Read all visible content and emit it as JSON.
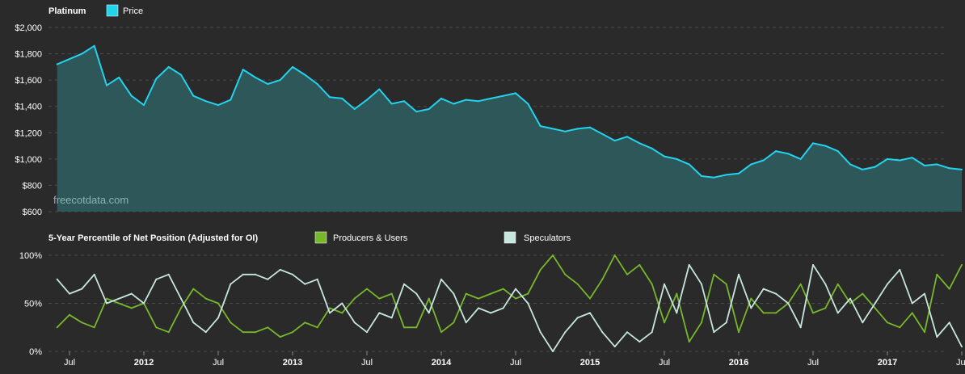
{
  "colors": {
    "background": "#2a2a2a",
    "grid": "#4a4a4a",
    "price_line": "#22d3ee",
    "price_fill": "#2e5a5c",
    "producers": "#77b82a",
    "speculators": "#c7e6de"
  },
  "watermark": "freecotdata.com",
  "chart_data": [
    {
      "type": "area",
      "title": "Platinum",
      "legend": [
        {
          "name": "Price",
          "color": "#22d3ee"
        }
      ],
      "ylim": [
        600,
        2000
      ],
      "y_ticks": [
        {
          "value": 2000,
          "label": "$2,000"
        },
        {
          "value": 1800,
          "label": "$1,800"
        },
        {
          "value": 1600,
          "label": "$1,600"
        },
        {
          "value": 1400,
          "label": "$1,400"
        },
        {
          "value": 1200,
          "label": "$1,200"
        },
        {
          "value": 1000,
          "label": "$1,000"
        },
        {
          "value": 800,
          "label": "$800"
        },
        {
          "value": 600,
          "label": "$600"
        }
      ],
      "grid": true,
      "series": [
        {
          "name": "Price",
          "x": [
            "2011-06",
            "2011-07",
            "2011-08",
            "2011-09",
            "2011-10",
            "2011-11",
            "2011-12",
            "2012-01",
            "2012-02",
            "2012-03",
            "2012-04",
            "2012-05",
            "2012-06",
            "2012-07",
            "2012-08",
            "2012-09",
            "2012-10",
            "2012-11",
            "2012-12",
            "2013-01",
            "2013-02",
            "2013-03",
            "2013-04",
            "2013-05",
            "2013-06",
            "2013-07",
            "2013-08",
            "2013-09",
            "2013-10",
            "2013-11",
            "2013-12",
            "2014-01",
            "2014-02",
            "2014-03",
            "2014-04",
            "2014-05",
            "2014-06",
            "2014-07",
            "2014-08",
            "2014-09",
            "2014-10",
            "2014-11",
            "2014-12",
            "2015-01",
            "2015-02",
            "2015-03",
            "2015-04",
            "2015-05",
            "2015-06",
            "2015-07",
            "2015-08",
            "2015-09",
            "2015-10",
            "2015-11",
            "2015-12",
            "2016-01",
            "2016-02",
            "2016-03",
            "2016-04",
            "2016-05",
            "2016-06",
            "2016-07",
            "2016-08",
            "2016-09",
            "2016-10",
            "2016-11",
            "2016-12",
            "2017-01",
            "2017-02",
            "2017-03",
            "2017-04",
            "2017-05",
            "2017-06",
            "2017-07"
          ],
          "values": [
            1720,
            1760,
            1800,
            1860,
            1560,
            1620,
            1480,
            1410,
            1610,
            1700,
            1640,
            1480,
            1440,
            1410,
            1450,
            1680,
            1620,
            1570,
            1600,
            1700,
            1640,
            1570,
            1470,
            1460,
            1380,
            1450,
            1530,
            1420,
            1440,
            1360,
            1380,
            1460,
            1420,
            1450,
            1440,
            1460,
            1480,
            1500,
            1420,
            1250,
            1230,
            1210,
            1230,
            1240,
            1190,
            1140,
            1170,
            1120,
            1080,
            1020,
            1000,
            960,
            870,
            860,
            880,
            890,
            960,
            990,
            1060,
            1040,
            1000,
            1120,
            1100,
            1060,
            960,
            920,
            940,
            1000,
            990,
            1010,
            950,
            960,
            930,
            920
          ]
        }
      ]
    },
    {
      "type": "line",
      "title": "5-Year Percentile of Net Position (Adjusted for OI)",
      "ylim": [
        0,
        100
      ],
      "y_ticks": [
        {
          "value": 100,
          "label": "100%"
        },
        {
          "value": 50,
          "label": "50%"
        },
        {
          "value": 0,
          "label": "0%"
        }
      ],
      "x_ticks": [
        {
          "label": "Jul",
          "x": "2011-07",
          "bold": false
        },
        {
          "label": "2012",
          "x": "2012-01",
          "bold": true
        },
        {
          "label": "Jul",
          "x": "2012-07",
          "bold": false
        },
        {
          "label": "2013",
          "x": "2013-01",
          "bold": true
        },
        {
          "label": "Jul",
          "x": "2013-07",
          "bold": false
        },
        {
          "label": "2014",
          "x": "2014-01",
          "bold": true
        },
        {
          "label": "Jul",
          "x": "2014-07",
          "bold": false
        },
        {
          "label": "2015",
          "x": "2015-01",
          "bold": true
        },
        {
          "label": "Jul",
          "x": "2015-07",
          "bold": false
        },
        {
          "label": "2016",
          "x": "2016-01",
          "bold": true
        },
        {
          "label": "Jul",
          "x": "2016-07",
          "bold": false
        },
        {
          "label": "2017",
          "x": "2017-01",
          "bold": true
        },
        {
          "label": "Jul",
          "x": "2017-07",
          "bold": false
        }
      ],
      "grid": true,
      "series": [
        {
          "name": "Producers & Users",
          "color": "#77b82a",
          "x": [
            "2011-06",
            "2011-07",
            "2011-08",
            "2011-09",
            "2011-10",
            "2011-11",
            "2011-12",
            "2012-01",
            "2012-02",
            "2012-03",
            "2012-04",
            "2012-05",
            "2012-06",
            "2012-07",
            "2012-08",
            "2012-09",
            "2012-10",
            "2012-11",
            "2012-12",
            "2013-01",
            "2013-02",
            "2013-03",
            "2013-04",
            "2013-05",
            "2013-06",
            "2013-07",
            "2013-08",
            "2013-09",
            "2013-10",
            "2013-11",
            "2013-12",
            "2014-01",
            "2014-02",
            "2014-03",
            "2014-04",
            "2014-05",
            "2014-06",
            "2014-07",
            "2014-08",
            "2014-09",
            "2014-10",
            "2014-11",
            "2014-12",
            "2015-01",
            "2015-02",
            "2015-03",
            "2015-04",
            "2015-05",
            "2015-06",
            "2015-07",
            "2015-08",
            "2015-09",
            "2015-10",
            "2015-11",
            "2015-12",
            "2016-01",
            "2016-02",
            "2016-03",
            "2016-04",
            "2016-05",
            "2016-06",
            "2016-07",
            "2016-08",
            "2016-09",
            "2016-10",
            "2016-11",
            "2016-12",
            "2017-01",
            "2017-02",
            "2017-03",
            "2017-04",
            "2017-05",
            "2017-06",
            "2017-07"
          ],
          "values": [
            25,
            38,
            30,
            25,
            55,
            50,
            45,
            50,
            25,
            20,
            45,
            65,
            55,
            50,
            30,
            20,
            20,
            25,
            15,
            20,
            30,
            25,
            45,
            40,
            55,
            65,
            55,
            60,
            25,
            25,
            55,
            20,
            30,
            60,
            55,
            60,
            65,
            55,
            60,
            85,
            100,
            80,
            70,
            55,
            75,
            100,
            80,
            90,
            70,
            30,
            60,
            10,
            30,
            80,
            70,
            20,
            55,
            40,
            40,
            50,
            70,
            40,
            45,
            70,
            50,
            60,
            45,
            30,
            25,
            40,
            20,
            80,
            65,
            90
          ]
        },
        {
          "name": "Speculators",
          "color": "#c7e6de",
          "x": [
            "2011-06",
            "2011-07",
            "2011-08",
            "2011-09",
            "2011-10",
            "2011-11",
            "2011-12",
            "2012-01",
            "2012-02",
            "2012-03",
            "2012-04",
            "2012-05",
            "2012-06",
            "2012-07",
            "2012-08",
            "2012-09",
            "2012-10",
            "2012-11",
            "2012-12",
            "2013-01",
            "2013-02",
            "2013-03",
            "2013-04",
            "2013-05",
            "2013-06",
            "2013-07",
            "2013-08",
            "2013-09",
            "2013-10",
            "2013-11",
            "2013-12",
            "2014-01",
            "2014-02",
            "2014-03",
            "2014-04",
            "2014-05",
            "2014-06",
            "2014-07",
            "2014-08",
            "2014-09",
            "2014-10",
            "2014-11",
            "2014-12",
            "2015-01",
            "2015-02",
            "2015-03",
            "2015-04",
            "2015-05",
            "2015-06",
            "2015-07",
            "2015-08",
            "2015-09",
            "2015-10",
            "2015-11",
            "2015-12",
            "2016-01",
            "2016-02",
            "2016-03",
            "2016-04",
            "2016-05",
            "2016-06",
            "2016-07",
            "2016-08",
            "2016-09",
            "2016-10",
            "2016-11",
            "2016-12",
            "2017-01",
            "2017-02",
            "2017-03",
            "2017-04",
            "2017-05",
            "2017-06",
            "2017-07"
          ],
          "values": [
            75,
            60,
            65,
            80,
            50,
            55,
            60,
            50,
            75,
            80,
            55,
            30,
            20,
            35,
            70,
            80,
            80,
            75,
            85,
            80,
            70,
            75,
            40,
            50,
            30,
            20,
            40,
            35,
            70,
            60,
            40,
            75,
            60,
            30,
            45,
            40,
            45,
            65,
            50,
            20,
            0,
            20,
            35,
            40,
            20,
            5,
            20,
            10,
            20,
            70,
            40,
            90,
            70,
            20,
            30,
            80,
            45,
            65,
            60,
            50,
            25,
            90,
            70,
            40,
            55,
            30,
            50,
            70,
            85,
            50,
            60,
            15,
            30,
            5
          ]
        }
      ]
    }
  ]
}
